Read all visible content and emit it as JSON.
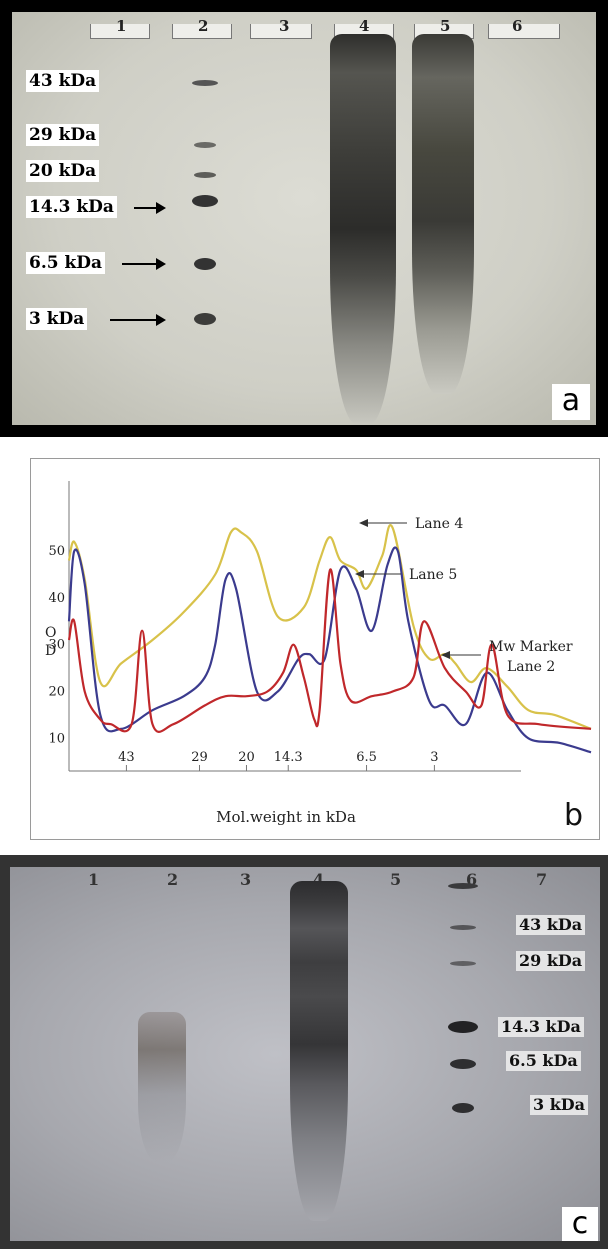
{
  "panel_a": {
    "letter": "a",
    "lane_numbers": [
      "1",
      "2",
      "3",
      "4",
      "5",
      "6"
    ],
    "mw_labels": [
      "43 kDa",
      "29 kDa",
      "20 kDa",
      "14.3 kDa",
      "6.5 kDa",
      "3 kDa"
    ]
  },
  "panel_b": {
    "letter": "b",
    "chart_data": {
      "type": "line",
      "xlabel": "Mol.weight in kDa",
      "ylabel": "O D",
      "x_tick_labels": [
        "43",
        "29",
        "20",
        "14.3",
        "6.5",
        "3"
      ],
      "y_ticks": [
        10,
        20,
        30,
        40,
        50
      ],
      "ylim": [
        3,
        65
      ],
      "xlim": [
        0,
        100
      ],
      "grid": false,
      "annotations": [
        "Lane 4",
        "Lane 5",
        "Mw Marker",
        "Lane 2"
      ],
      "series": [
        {
          "name": "Lane 4",
          "color": "#d8c24a",
          "x": [
            0,
            1,
            3,
            6,
            10,
            16,
            22,
            28,
            31,
            33,
            36,
            40,
            45,
            48,
            50,
            52,
            55,
            57,
            60,
            62,
            66,
            69,
            72,
            74,
            77,
            80,
            84,
            88,
            93,
            100
          ],
          "y": [
            48,
            52,
            44,
            22,
            26,
            31,
            37,
            45,
            54,
            54,
            50,
            36,
            38,
            48,
            53,
            48,
            46,
            42,
            49,
            55,
            34,
            27,
            28,
            26,
            22,
            25,
            21,
            16,
            15,
            12
          ]
        },
        {
          "name": "Lane 5",
          "color": "#3b3b8e",
          "x": [
            0,
            1,
            3,
            6,
            10,
            16,
            22,
            26,
            28,
            30,
            32,
            36,
            40,
            44,
            46,
            49,
            52,
            55,
            58,
            61,
            63,
            65,
            69,
            72,
            76,
            80,
            84,
            88,
            94,
            100
          ],
          "y": [
            35,
            50,
            43,
            15,
            12,
            16,
            19,
            23,
            30,
            44,
            42,
            20,
            20,
            27,
            28,
            27,
            46,
            42,
            33,
            47,
            50,
            35,
            18,
            17,
            13,
            24,
            16,
            10,
            9,
            7
          ]
        },
        {
          "name": "Mw Marker Lane 2",
          "color": "#c0282b",
          "x": [
            0,
            1,
            3,
            6,
            8,
            12,
            14,
            16,
            20,
            26,
            30,
            34,
            38,
            41,
            43,
            45,
            47,
            48,
            50,
            52,
            54,
            58,
            62,
            66,
            68,
            72,
            76,
            79,
            81,
            84,
            90,
            100
          ],
          "y": [
            31,
            35,
            20,
            14,
            13,
            13,
            33,
            13,
            13,
            17,
            19,
            19,
            20,
            24,
            30,
            23,
            14,
            16,
            46,
            26,
            18,
            19,
            20,
            23,
            35,
            25,
            20,
            17,
            30,
            15,
            13,
            12
          ]
        }
      ]
    }
  },
  "panel_c": {
    "letter": "c",
    "lane_numbers": [
      "1",
      "2",
      "3",
      "4",
      "5",
      "6",
      "7"
    ],
    "mw_labels": [
      "43 kDa",
      "29 kDa",
      "14.3 kDa",
      "6.5 kDa",
      "3 kDa"
    ]
  }
}
